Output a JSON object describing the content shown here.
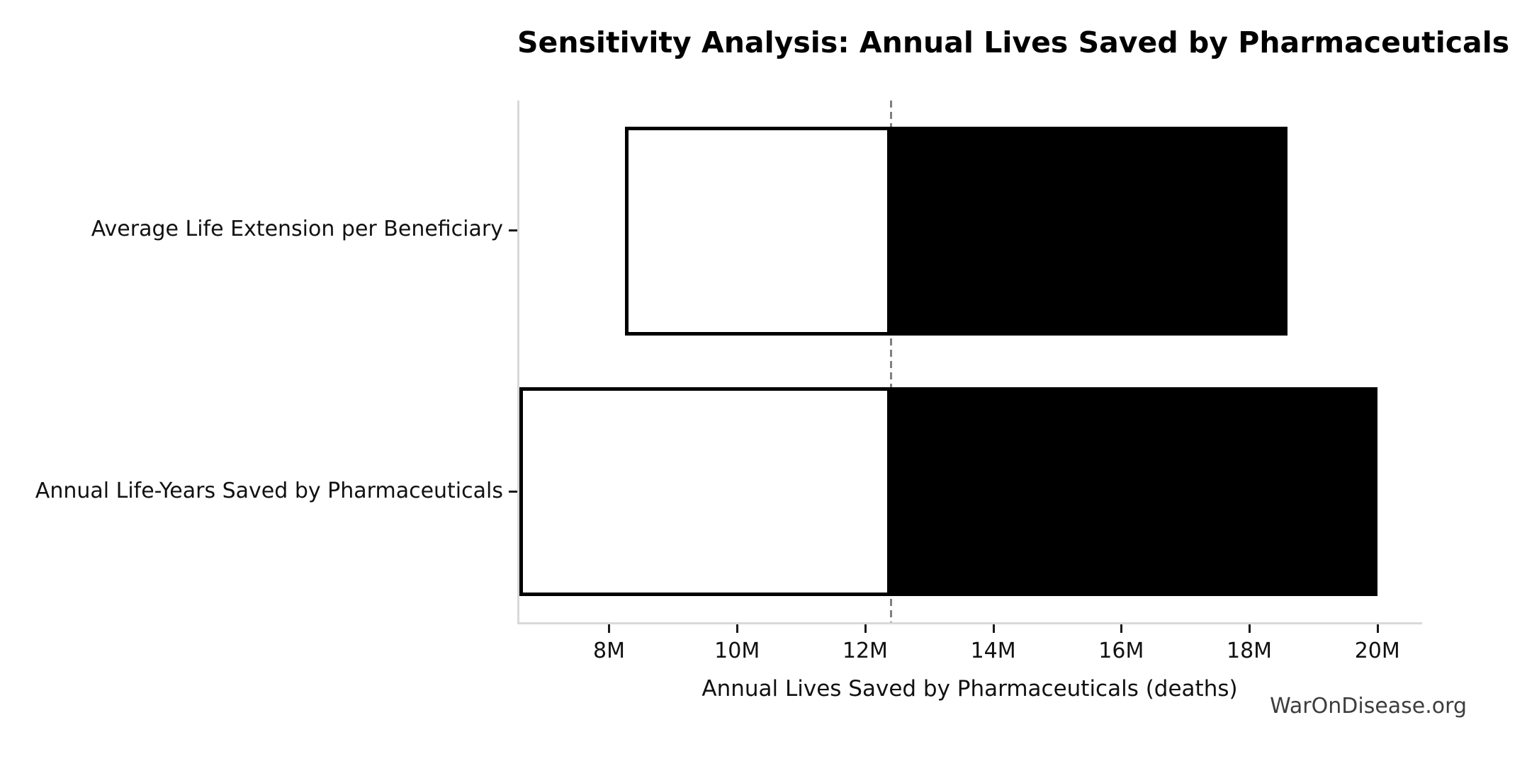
{
  "chart_data": {
    "type": "bar",
    "subtype": "tornado-sensitivity-horizontal",
    "title": "Sensitivity Analysis: Annual Lives Saved by Pharmaceuticals",
    "xlabel": "Annual Lives Saved by Pharmaceuticals (deaths)",
    "watermark": "WarOnDisease.org",
    "unit": "millions of deaths",
    "xlim": [
      6.6,
      20.7
    ],
    "baseline_value": 12.4,
    "x_ticks": [
      {
        "value": 8,
        "label": "8M"
      },
      {
        "value": 10,
        "label": "10M"
      },
      {
        "value": 12,
        "label": "12M"
      },
      {
        "value": 14,
        "label": "14M"
      },
      {
        "value": 16,
        "label": "16M"
      },
      {
        "value": 18,
        "label": "18M"
      },
      {
        "value": 20,
        "label": "20M"
      }
    ],
    "rows": [
      {
        "label": "Average Life Extension per Beneficiary",
        "low": 8.25,
        "high": 18.6
      },
      {
        "label": "Annual Life-Years Saved by Pharmaceuticals",
        "low": 6.6,
        "high": 20.0
      }
    ],
    "layout": {
      "grid": false,
      "legend": "none",
      "bar_band_fraction": 0.8,
      "low_side_fill": "#ffffff",
      "high_side_fill": "#000000",
      "bar_edge_color": "#000000",
      "baseline_line_color": "#808080",
      "baseline_line_style": "dashed",
      "spine_color": "#d9d9d9",
      "text_color": "#111111",
      "watermark_color": "#3d3d3d",
      "background": "#ffffff"
    }
  }
}
